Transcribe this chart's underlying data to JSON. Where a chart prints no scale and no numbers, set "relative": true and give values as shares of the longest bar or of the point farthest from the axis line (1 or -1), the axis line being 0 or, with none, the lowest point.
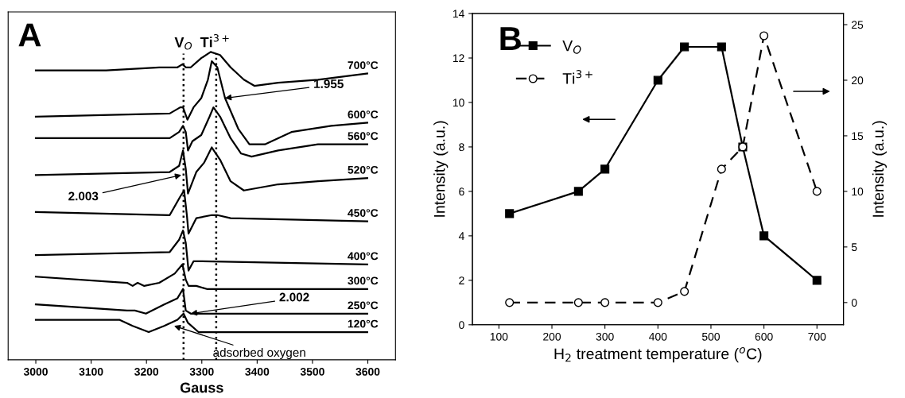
{
  "chart_data": [
    {
      "type": "line",
      "relative": true,
      "xlabel": "Gauss",
      "xlim": [
        2950,
        3650
      ],
      "xticks": [
        3000,
        3100,
        3200,
        3300,
        3400,
        3500,
        3600
      ],
      "tick_labels": "x",
      "grid": false,
      "legend": false,
      "marker": "none",
      "line_style": "solid",
      "series": [
        {
          "name": "700°C",
          "color": "#000000",
          "x": [
            3000,
            3127,
            3223,
            3256,
            3265,
            3271,
            3280,
            3299,
            3316,
            3333,
            3352,
            3376,
            3395,
            3438,
            3510,
            3599
          ],
          "values": [
            0.94,
            0.94,
            0.95,
            0.95,
            0.96,
            0.95,
            0.95,
            0.98,
            1.0,
            0.99,
            0.95,
            0.91,
            0.89,
            0.9,
            0.91,
            0.93
          ]
        },
        {
          "name": "600°C",
          "color": "#000000",
          "x": [
            3000,
            3242,
            3261,
            3266,
            3274,
            3285,
            3299,
            3311,
            3318,
            3328,
            3342,
            3366,
            3386,
            3414,
            3462,
            3534,
            3599
          ],
          "values": [
            0.79,
            0.8,
            0.82,
            0.82,
            0.78,
            0.82,
            0.85,
            0.91,
            0.97,
            0.95,
            0.85,
            0.75,
            0.7,
            0.7,
            0.74,
            0.76,
            0.77
          ]
        },
        {
          "name": "560°C",
          "color": "#000000",
          "x": [
            3000,
            3242,
            3259,
            3266,
            3271,
            3275,
            3283,
            3299,
            3314,
            3321,
            3333,
            3352,
            3371,
            3390,
            3438,
            3510,
            3599
          ],
          "values": [
            0.72,
            0.72,
            0.74,
            0.76,
            0.74,
            0.68,
            0.71,
            0.73,
            0.79,
            0.82,
            0.79,
            0.72,
            0.67,
            0.66,
            0.68,
            0.7,
            0.7
          ]
        },
        {
          "name": "520°C",
          "color": "#000000",
          "x": [
            3000,
            3242,
            3259,
            3266,
            3271,
            3275,
            3290,
            3304,
            3318,
            3333,
            3352,
            3376,
            3438,
            3510,
            3599
          ],
          "values": [
            0.6,
            0.61,
            0.63,
            0.68,
            0.62,
            0.54,
            0.61,
            0.64,
            0.69,
            0.65,
            0.58,
            0.55,
            0.57,
            0.58,
            0.59
          ]
        },
        {
          "name": "450°C",
          "color": "#000000",
          "x": [
            3000,
            3242,
            3261,
            3268,
            3273,
            3276,
            3290,
            3318,
            3328,
            3352,
            3599
          ],
          "values": [
            0.48,
            0.47,
            0.53,
            0.55,
            0.47,
            0.41,
            0.46,
            0.47,
            0.47,
            0.46,
            0.45
          ]
        },
        {
          "name": "400°C",
          "color": "#000000",
          "x": [
            3000,
            3242,
            3259,
            3266,
            3271,
            3276,
            3285,
            3299,
            3599
          ],
          "values": [
            0.34,
            0.35,
            0.39,
            0.42,
            0.38,
            0.29,
            0.32,
            0.32,
            0.31
          ]
        },
        {
          "name": "300°C",
          "color": "#000000",
          "x": [
            3000,
            3165,
            3175,
            3184,
            3196,
            3223,
            3251,
            3265,
            3271,
            3276,
            3290,
            3309,
            3599
          ],
          "values": [
            0.27,
            0.25,
            0.24,
            0.25,
            0.24,
            0.25,
            0.28,
            0.31,
            0.26,
            0.24,
            0.24,
            0.23,
            0.23
          ]
        },
        {
          "name": "250°C",
          "color": "#000000",
          "x": [
            3000,
            3165,
            3179,
            3199,
            3232,
            3256,
            3266,
            3271,
            3280,
            3309,
            3599
          ],
          "values": [
            0.18,
            0.16,
            0.16,
            0.15,
            0.18,
            0.2,
            0.23,
            0.16,
            0.15,
            0.15,
            0.15
          ]
        },
        {
          "name": "120°C",
          "color": "#000000",
          "x": [
            3000,
            3151,
            3175,
            3204,
            3232,
            3256,
            3267,
            3275,
            3294,
            3318,
            3599
          ],
          "values": [
            0.13,
            0.13,
            0.11,
            0.09,
            0.11,
            0.13,
            0.15,
            0.12,
            0.09,
            0.09,
            0.09
          ]
        }
      ],
      "ref_lines": [
        {
          "axis": "x",
          "value": 3267,
          "label": "V$_{O}$",
          "line_style": "dotted",
          "color": "#000000"
        },
        {
          "axis": "x",
          "value": 3326,
          "label": "Ti$^{3+}$",
          "line_style": "dotted",
          "color": "#000000"
        }
      ],
      "annotations": [
        "A",
        {
          "text": "1.955",
          "x": 3342,
          "y": 0.85
        },
        {
          "text": "2.003",
          "x": 3263,
          "y": 0.6
        },
        {
          "text": "2.002",
          "x": 3280,
          "y": 0.15
        },
        {
          "text": "adsorbed oxygen",
          "x": 3250,
          "y": 0.11
        }
      ]
    },
    {
      "type": "line",
      "xlabel": "H$_{2}$ treatment temperature ($^{o}$C)",
      "ylabel": "Intensity (a.u.)",
      "y2label": "Intensity (a.u.)",
      "xlim": [
        50,
        750
      ],
      "xticks": [
        100,
        200,
        300,
        400,
        500,
        600,
        700
      ],
      "ylim": [
        0,
        14
      ],
      "yticks": [
        0,
        2,
        4,
        6,
        8,
        10,
        12,
        14
      ],
      "y2lim": [
        -2,
        26
      ],
      "y2ticks": [
        0,
        5,
        10,
        15,
        20,
        25
      ],
      "grid": false,
      "legend": "top left",
      "x": [
        120,
        250,
        300,
        400,
        450,
        520,
        560,
        600,
        700
      ],
      "series": [
        {
          "name": "V$_{O}$",
          "color": "#000000",
          "marker": "square",
          "line_style": "solid",
          "values": [
            5,
            6,
            7,
            11,
            12.5,
            12.5,
            8,
            4,
            2
          ]
        },
        {
          "name": "Ti$^{3+}$",
          "color": "#000000",
          "marker": "circle",
          "line_style": "dashed",
          "axis": "y2",
          "values": [
            0,
            0,
            0,
            0,
            1,
            12,
            14,
            24,
            10
          ]
        }
      ],
      "annotations": [
        "B"
      ]
    }
  ]
}
